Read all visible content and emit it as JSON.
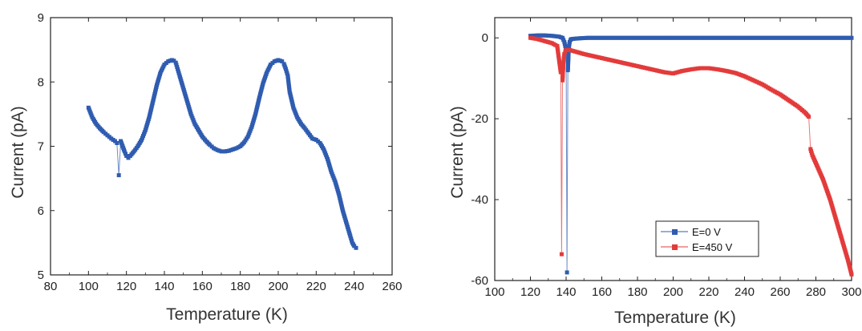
{
  "chart_data": [
    {
      "type": "scatter",
      "xlabel": "Temperature (K)",
      "ylabel": "Current (pA)",
      "xlim": [
        80,
        260
      ],
      "ylim": [
        5,
        9
      ],
      "xticks": [
        80,
        100,
        120,
        140,
        160,
        180,
        200,
        220,
        240,
        260
      ],
      "yticks": [
        5,
        6,
        7,
        8,
        9
      ],
      "colors": {
        "series": "#2f5cb0"
      },
      "series": [
        {
          "x": [
            100,
            102,
            104,
            106,
            108,
            110,
            112,
            114,
            115,
            116,
            117,
            118,
            119,
            120,
            121,
            122,
            124,
            126,
            128,
            130,
            132,
            134,
            136,
            138,
            140,
            142,
            144,
            145,
            146,
            147,
            148,
            150,
            152,
            154,
            156,
            158,
            160,
            162,
            164,
            166,
            168,
            170,
            172,
            174,
            176,
            178,
            180,
            182,
            184,
            186,
            188,
            190,
            192,
            194,
            196,
            198,
            200,
            202,
            203,
            204,
            205,
            206,
            208,
            210,
            212,
            214,
            216,
            218,
            220,
            222,
            224,
            226,
            228,
            230,
            232,
            234,
            236,
            238,
            239,
            240,
            241
          ],
          "values": [
            7.6,
            7.45,
            7.35,
            7.28,
            7.22,
            7.17,
            7.12,
            7.08,
            7.05,
            6.55,
            7.08,
            7.0,
            6.92,
            6.85,
            6.82,
            6.85,
            6.92,
            7.0,
            7.1,
            7.25,
            7.45,
            7.7,
            7.95,
            8.15,
            8.27,
            8.32,
            8.34,
            8.33,
            8.3,
            8.2,
            8.1,
            7.9,
            7.7,
            7.5,
            7.35,
            7.25,
            7.15,
            7.08,
            7.02,
            6.97,
            6.94,
            6.92,
            6.92,
            6.93,
            6.95,
            6.97,
            7.0,
            7.06,
            7.15,
            7.3,
            7.5,
            7.75,
            7.98,
            8.15,
            8.27,
            8.32,
            8.34,
            8.32,
            8.28,
            8.2,
            8.1,
            7.85,
            7.6,
            7.45,
            7.35,
            7.28,
            7.2,
            7.12,
            7.1,
            7.05,
            6.95,
            6.8,
            6.6,
            6.45,
            6.25,
            6.0,
            5.8,
            5.6,
            5.5,
            5.45,
            5.42
          ]
        }
      ]
    },
    {
      "type": "scatter",
      "xlabel": "Temperature (K)",
      "ylabel": "Current (pA)",
      "xlim": [
        100,
        300
      ],
      "ylim": [
        -60,
        5
      ],
      "xticks": [
        100,
        120,
        140,
        160,
        180,
        200,
        220,
        240,
        260,
        280,
        300
      ],
      "yticks": [
        0,
        -20,
        -40,
        -60
      ],
      "legend_position": "bottom-right",
      "series": [
        {
          "name": "E=0 V",
          "color": "#2f5cb0",
          "x": [
            120,
            124,
            128,
            132,
            136,
            138,
            139,
            140,
            140.5,
            141,
            141.5,
            142,
            142.5,
            143,
            145,
            148,
            152,
            160,
            180,
            200,
            220,
            240,
            260,
            280,
            300
          ],
          "values": [
            0.5,
            0.6,
            0.6,
            0.5,
            0.3,
            0.0,
            -1.0,
            -3.0,
            -58.0,
            -8.0,
            -2.5,
            -1.0,
            -0.5,
            -0.3,
            -0.2,
            -0.1,
            0.0,
            0.0,
            0.0,
            0.0,
            0.0,
            0.0,
            0.0,
            0.0,
            0.0
          ]
        },
        {
          "name": "E=450 V",
          "color": "#e33b3b",
          "x": [
            120,
            124,
            128,
            132,
            135,
            137,
            137.5,
            138,
            138.5,
            139,
            140,
            142,
            146,
            150,
            155,
            160,
            165,
            170,
            175,
            180,
            185,
            190,
            195,
            200,
            205,
            210,
            215,
            220,
            225,
            230,
            235,
            240,
            245,
            250,
            255,
            260,
            265,
            270,
            274,
            276,
            277,
            278,
            280,
            282,
            284,
            286,
            288,
            290,
            292,
            294,
            296,
            298,
            300
          ],
          "values": [
            0.0,
            -0.3,
            -0.8,
            -1.3,
            -2.0,
            -8.5,
            -53.5,
            -10.5,
            -6.0,
            -4.0,
            -3.0,
            -3.0,
            -3.5,
            -4.0,
            -4.5,
            -5.0,
            -5.5,
            -6.0,
            -6.5,
            -7.0,
            -7.5,
            -8.0,
            -8.5,
            -8.8,
            -8.2,
            -7.8,
            -7.5,
            -7.5,
            -7.8,
            -8.2,
            -8.7,
            -9.5,
            -10.5,
            -11.5,
            -12.8,
            -14.0,
            -15.5,
            -17.0,
            -18.5,
            -19.5,
            -27.5,
            -29.0,
            -31.0,
            -33.0,
            -35.0,
            -37.5,
            -40.0,
            -43.0,
            -46.0,
            -49.0,
            -52.0,
            -55.0,
            -58.5
          ]
        }
      ]
    }
  ]
}
